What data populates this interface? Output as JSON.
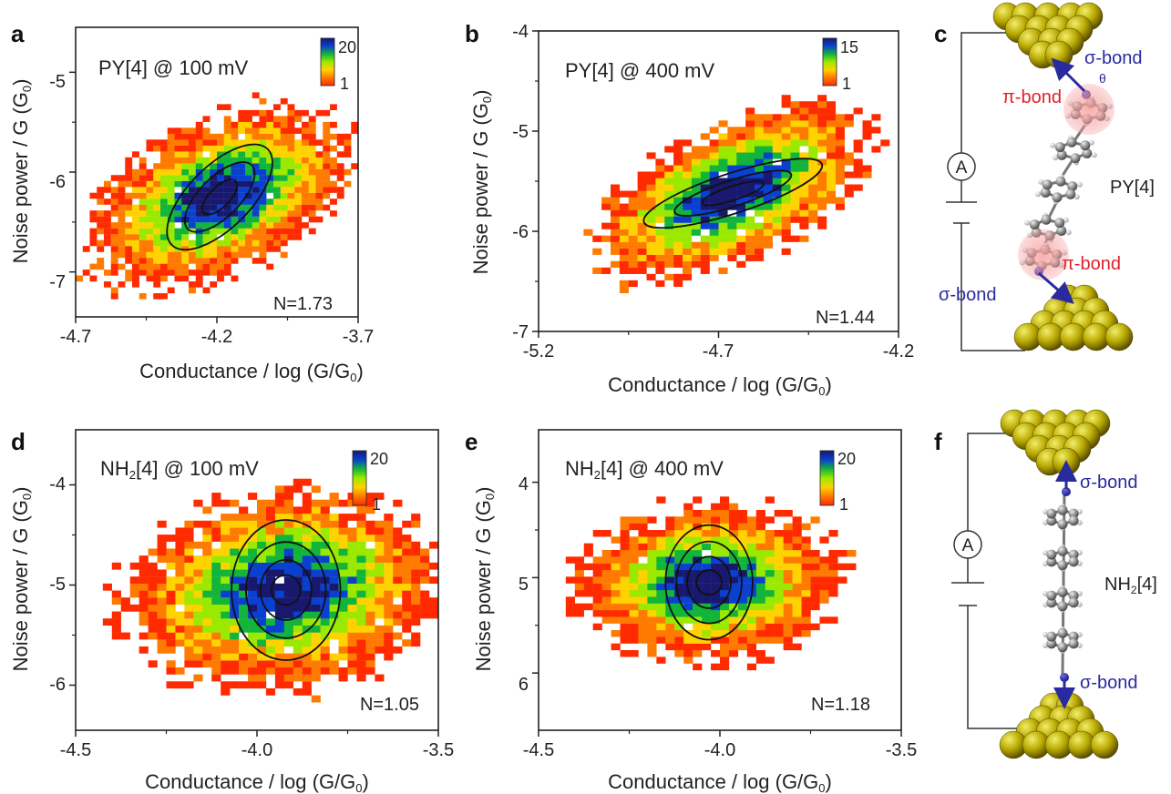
{
  "colorbar_colors": [
    "#ff2a00",
    "#ff7a00",
    "#ffd200",
    "#9be800",
    "#12b43a",
    "#0a40d0",
    "#17186e"
  ],
  "panels": [
    {
      "letter": "a",
      "label": "PY[4] @ 100 mV",
      "xlabel": "Conductance / log (G/G",
      "xlabel_sub": "0",
      "ylabel": "Noise power / G (G",
      "ylabel_sub": "0",
      "xticks": [
        "-4.7",
        "-4.2",
        "-3.7"
      ],
      "yticks": [
        "-5",
        "-6",
        "-7"
      ],
      "cbar_max": "20",
      "cbar_min": "1",
      "n_label": "N=1.73"
    },
    {
      "letter": "b",
      "label": "PY[4] @ 400 mV",
      "xlabel": "Conductance / log (G/G",
      "xlabel_sub": "0",
      "ylabel": "Noise power / G (G",
      "ylabel_sub": "0",
      "xticks": [
        "-5.2",
        "-4.7",
        "-4.2"
      ],
      "yticks": [
        "-4",
        "-5",
        "-6",
        "-7"
      ],
      "cbar_max": "15",
      "cbar_min": "1",
      "n_label": "N=1.44"
    },
    {
      "letter": "d",
      "label_main": "NH",
      "label_sub": "2",
      "label_rest": "[4] @ 100 mV",
      "xlabel": "Conductance / log (G/G",
      "xlabel_sub": "0",
      "ylabel": "Noise power / G (G",
      "ylabel_sub": "0",
      "xticks": [
        "-4.5",
        "-4.0",
        "-3.5"
      ],
      "yticks": [
        "-4",
        "-5",
        "-6"
      ],
      "cbar_max": "20",
      "cbar_min": "1",
      "n_label": "N=1.05"
    },
    {
      "letter": "e",
      "label_main": "NH",
      "label_sub": "2",
      "label_rest": "[4] @ 400 mV",
      "xlabel": "Conductance / log (G/G",
      "xlabel_sub": "0",
      "ylabel": "Noise power / G (G",
      "ylabel_sub": "0",
      "xticks": [
        "-4.5",
        "-4.0",
        "-3.5"
      ],
      "yticks": [
        "4",
        "5",
        "6"
      ],
      "cbar_max": "20",
      "cbar_min": "1",
      "n_label": "N=1.18"
    }
  ],
  "schematics": [
    {
      "letter": "c",
      "ammeter": "A",
      "molecule": "PY[4]",
      "top_bond": "σ-bond",
      "top_pi": "π-bond",
      "angle": "θ",
      "bottom_pi": "π-bond",
      "bottom_bond": "σ-bond"
    },
    {
      "letter": "f",
      "ammeter": "A",
      "molecule_main": "NH",
      "molecule_sub": "2",
      "molecule_rest": "[4]",
      "top_bond": "σ-bond",
      "bottom_bond": "σ-bond"
    }
  ],
  "chart_data": [
    {
      "type": "heatmap",
      "title": "PY[4] @ 100 mV",
      "xlabel": "Conductance / log (G/G0)",
      "ylabel": "Noise power / G (G0)",
      "xlim": [
        -4.7,
        -3.7
      ],
      "ylim": [
        -7.45,
        -4.55
      ],
      "color_range": [
        1,
        20
      ],
      "bin_size": [
        0.025,
        0.06
      ],
      "center": [
        -4.19,
        -6.25
      ],
      "spread": [
        0.26,
        0.5
      ],
      "correlation": 0.45,
      "extent": 2.1,
      "contours": [
        {
          "a": 0.08,
          "b": 0.1
        },
        {
          "a": 0.16,
          "b": 0.2
        },
        {
          "a": 0.24,
          "b": 0.31
        }
      ],
      "contour_angle": 45,
      "N": 1.73,
      "grid": false
    },
    {
      "type": "heatmap",
      "title": "PY[4] @ 400 mV",
      "xlabel": "Conductance / log (G/G0)",
      "ylabel": "Noise power / G (G0)",
      "xlim": [
        -5.2,
        -4.2
      ],
      "ylim": [
        -7.0,
        -4.0
      ],
      "color_range": [
        1,
        15
      ],
      "bin_size": [
        0.025,
        0.065
      ],
      "center": [
        -4.66,
        -5.62
      ],
      "spread": [
        0.22,
        0.5
      ],
      "correlation": 0.55,
      "extent": 2.0,
      "contours": [
        {
          "a": 0.09,
          "b": 0.07
        },
        {
          "a": 0.17,
          "b": 0.13
        },
        {
          "a": 0.26,
          "b": 0.2
        }
      ],
      "contour_angle": 18,
      "N": 1.44,
      "grid": false
    },
    {
      "type": "heatmap",
      "title": "NH2[4] @ 100 mV",
      "xlabel": "Conductance / log (G/G0)",
      "ylabel": "Noise power / G (G0)",
      "xlim": [
        -4.5,
        -3.5
      ],
      "ylim": [
        -6.45,
        -3.45
      ],
      "color_range": [
        1,
        20
      ],
      "bin_size": [
        0.025,
        0.07
      ],
      "center": [
        -3.92,
        -5.05
      ],
      "spread": [
        0.24,
        0.55
      ],
      "correlation": 0.1,
      "extent": 2.1,
      "contours": [
        {
          "a": 0.04,
          "b": 0.15
        },
        {
          "a": 0.07,
          "b": 0.3
        },
        {
          "a": 0.11,
          "b": 0.48
        },
        {
          "a": 0.15,
          "b": 0.7
        }
      ],
      "contour_angle": 0,
      "N": 1.05,
      "grid": false
    },
    {
      "type": "heatmap",
      "title": "NH2[4] @ 400 mV",
      "xlabel": "Conductance / log (G/G0)",
      "ylabel": "Noise power / G (G0)",
      "xlim": [
        -4.5,
        -3.5
      ],
      "ylim": [
        6.6,
        3.45
      ],
      "color_range": [
        1,
        20
      ],
      "bin_size": [
        0.025,
        0.07
      ],
      "center": [
        -4.03,
        5.05
      ],
      "spread": [
        0.2,
        0.45
      ],
      "correlation": -0.05,
      "extent": 2.1,
      "contours": [
        {
          "a": 0.035,
          "b": 0.13
        },
        {
          "a": 0.06,
          "b": 0.27
        },
        {
          "a": 0.09,
          "b": 0.43
        },
        {
          "a": 0.12,
          "b": 0.6
        }
      ],
      "contour_angle": 0,
      "N": 1.18,
      "grid": false
    }
  ]
}
